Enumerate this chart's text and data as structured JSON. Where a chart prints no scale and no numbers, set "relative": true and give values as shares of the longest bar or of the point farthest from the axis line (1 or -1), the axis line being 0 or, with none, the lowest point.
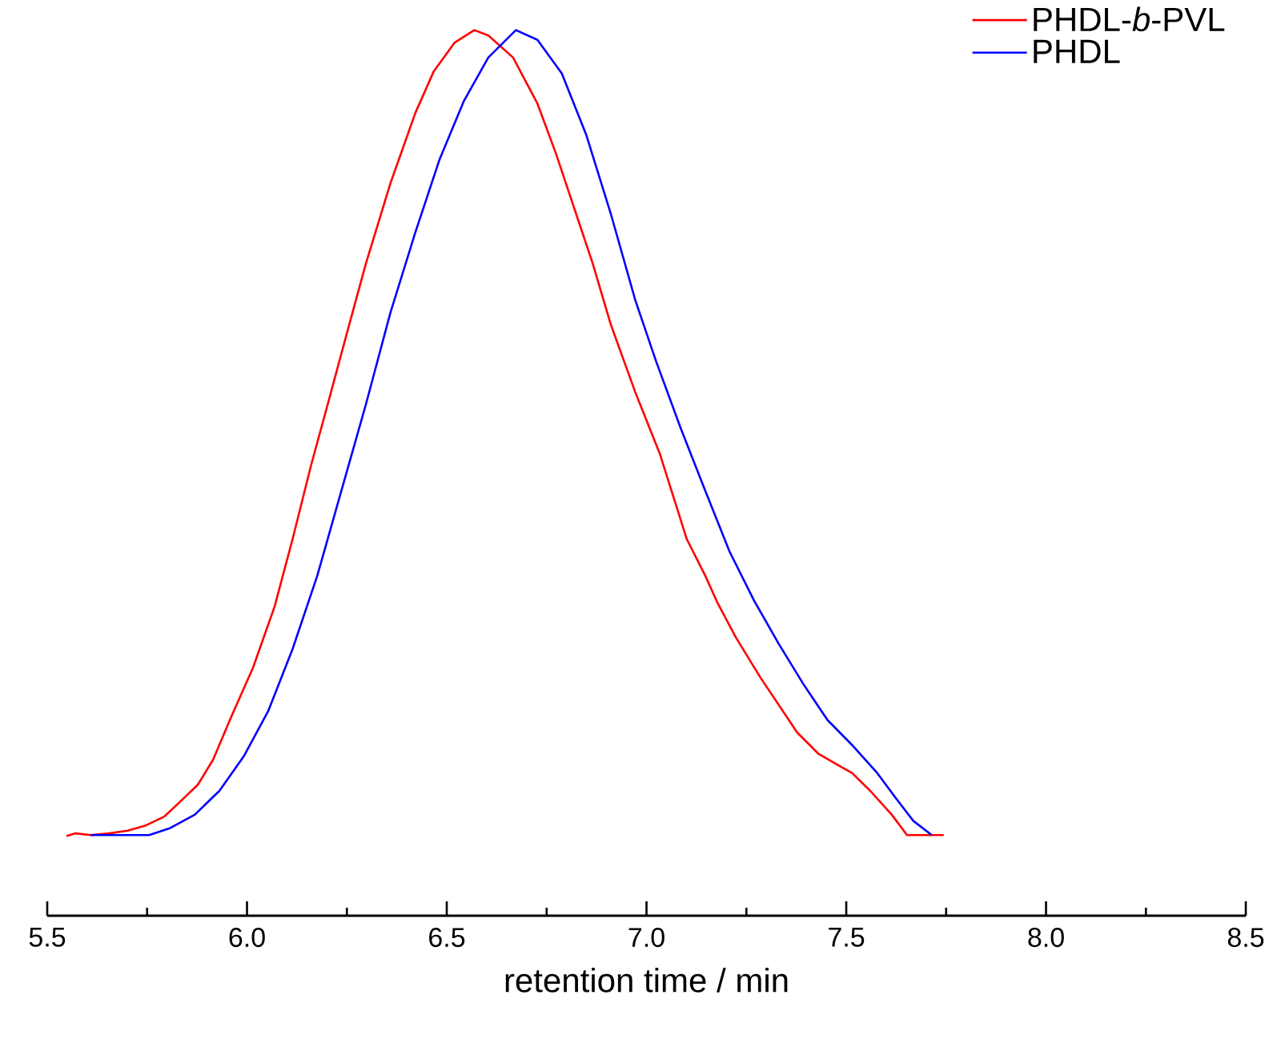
{
  "chart_data": {
    "type": "line",
    "xlabel": "retention time / min",
    "relative": true,
    "legend": "top right",
    "grid": false,
    "marker": "none",
    "line_style": "solid",
    "xlim": [
      5.5,
      8.5
    ],
    "xticks": [
      5.5,
      {
        "value": 5.75,
        "label": null
      },
      {
        "value": 6,
        "label": "6.0"
      },
      {
        "value": 6.25,
        "label": null
      },
      6.5,
      {
        "value": 6.75,
        "label": null
      },
      {
        "value": 7,
        "label": "7.0"
      },
      {
        "value": 7.25,
        "label": null
      },
      7.5,
      {
        "value": 7.75,
        "label": null
      },
      {
        "value": 8,
        "label": "8.0"
      },
      {
        "value": 8.25,
        "label": null
      },
      8.5
    ],
    "series": [
      {
        "name": "PHDL-*b*-PVL",
        "color": "#ff0000",
        "x": [
          5.548,
          5.571,
          5.609,
          5.655,
          5.701,
          5.747,
          5.793,
          5.831,
          5.877,
          5.915,
          5.961,
          6.015,
          6.069,
          6.114,
          6.16,
          6.206,
          6.252,
          6.298,
          6.359,
          6.421,
          6.467,
          6.52,
          6.569,
          6.604,
          6.666,
          6.727,
          6.773,
          6.819,
          6.865,
          6.911,
          6.972,
          7.033,
          7.101,
          7.147,
          7.178,
          7.224,
          7.285,
          7.331,
          7.377,
          7.43,
          7.484,
          7.515,
          7.56,
          7.614,
          7.652,
          7.744
        ],
        "values": [
          0.09,
          0.093,
          0.091,
          0.093,
          0.096,
          0.102,
          0.112,
          0.128,
          0.148,
          0.176,
          0.225,
          0.28,
          0.349,
          0.425,
          0.508,
          0.584,
          0.661,
          0.737,
          0.827,
          0.906,
          0.953,
          0.986,
          1.0,
          0.994,
          0.969,
          0.917,
          0.861,
          0.799,
          0.737,
          0.667,
          0.591,
          0.522,
          0.425,
          0.384,
          0.353,
          0.314,
          0.269,
          0.238,
          0.207,
          0.183,
          0.169,
          0.161,
          0.141,
          0.114,
          0.091,
          0.091
        ]
      },
      {
        "name": "PHDL",
        "color": "#0000ff",
        "x": [
          5.609,
          5.755,
          5.808,
          5.869,
          5.931,
          5.992,
          6.053,
          6.114,
          6.176,
          6.237,
          6.298,
          6.359,
          6.421,
          6.482,
          6.543,
          6.604,
          6.673,
          6.727,
          6.788,
          6.849,
          6.911,
          6.972,
          7.024,
          7.086,
          7.147,
          7.208,
          7.269,
          7.331,
          7.392,
          7.453,
          7.514,
          7.576,
          7.622,
          7.668,
          7.714
        ],
        "values": [
          0.091,
          0.091,
          0.099,
          0.114,
          0.141,
          0.18,
          0.231,
          0.301,
          0.384,
          0.481,
          0.578,
          0.681,
          0.771,
          0.854,
          0.92,
          0.969,
          1.0,
          0.989,
          0.951,
          0.882,
          0.792,
          0.695,
          0.626,
          0.55,
          0.48,
          0.411,
          0.356,
          0.307,
          0.262,
          0.221,
          0.193,
          0.162,
          0.134,
          0.107,
          0.091
        ]
      }
    ]
  }
}
